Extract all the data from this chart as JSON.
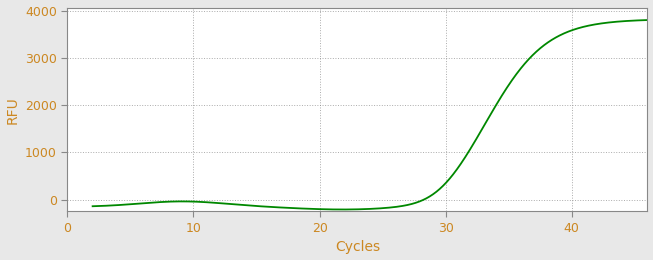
{
  "title": "",
  "xlabel": "Cycles",
  "ylabel": "RFU",
  "xlim": [
    0,
    46
  ],
  "ylim": [
    -250,
    4050
  ],
  "yticks": [
    0,
    1000,
    2000,
    3000,
    4000
  ],
  "xticks": [
    0,
    10,
    20,
    30,
    40
  ],
  "line_color": "#008800",
  "background_color": "#e8e8e8",
  "plot_bg_color": "#ffffff",
  "grid_color": "#888888",
  "label_color": "#cc8822",
  "spine_color": "#888888",
  "tick_color": "#888888",
  "sigmoid_L": 3820,
  "sigmoid_k": 0.42,
  "sigmoid_x0": 33.5,
  "x_start": 2,
  "x_end": 46
}
